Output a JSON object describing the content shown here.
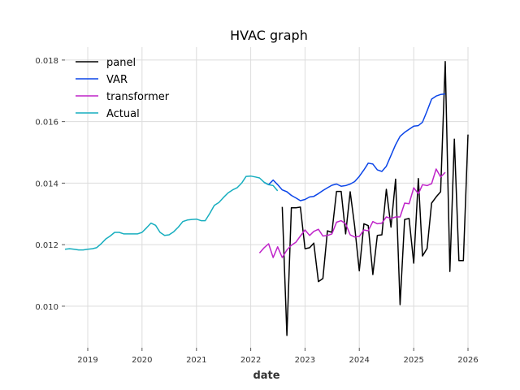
{
  "chart_data": {
    "type": "line",
    "title": "HVAC graph",
    "xlabel": "date",
    "ylabel": "",
    "x_ticks": [
      "2019",
      "2020",
      "2021",
      "2022",
      "2023",
      "2024",
      "2025",
      "2026"
    ],
    "y_ticks": [
      "0.010",
      "0.012",
      "0.014",
      "0.016",
      "0.018"
    ],
    "xlim": [
      "2018-08-01",
      "2026-01-01"
    ],
    "ylim": [
      0.00865,
      0.01842
    ],
    "grid": true,
    "legend_position": "top-left",
    "series": [
      {
        "name": "panel",
        "color": "#000000",
        "points": [
          [
            "2022-08-01",
            0.01323
          ],
          [
            "2022-09-01",
            0.00905
          ],
          [
            "2022-10-01",
            0.0132
          ],
          [
            "2022-11-01",
            0.0132
          ],
          [
            "2022-12-01",
            0.01322
          ],
          [
            "2023-01-01",
            0.01187
          ],
          [
            "2023-02-01",
            0.0119
          ],
          [
            "2023-03-01",
            0.01205
          ],
          [
            "2023-04-01",
            0.0108
          ],
          [
            "2023-05-01",
            0.0109
          ],
          [
            "2023-06-01",
            0.01245
          ],
          [
            "2023-07-01",
            0.0124
          ],
          [
            "2023-08-01",
            0.01373
          ],
          [
            "2023-09-01",
            0.01373
          ],
          [
            "2023-10-01",
            0.01235
          ],
          [
            "2023-11-01",
            0.01372
          ],
          [
            "2023-12-01",
            0.0126
          ],
          [
            "2024-01-01",
            0.01115
          ],
          [
            "2024-02-01",
            0.01268
          ],
          [
            "2024-03-01",
            0.01262
          ],
          [
            "2024-04-01",
            0.01103
          ],
          [
            "2024-05-01",
            0.0123
          ],
          [
            "2024-06-01",
            0.01232
          ],
          [
            "2024-07-01",
            0.0138
          ],
          [
            "2024-08-01",
            0.01257
          ],
          [
            "2024-09-01",
            0.01413
          ],
          [
            "2024-10-01",
            0.01005
          ],
          [
            "2024-11-01",
            0.01282
          ],
          [
            "2024-12-01",
            0.01285
          ],
          [
            "2025-01-01",
            0.0114
          ],
          [
            "2025-02-01",
            0.01415
          ],
          [
            "2025-03-01",
            0.01163
          ],
          [
            "2025-04-01",
            0.01188
          ],
          [
            "2025-05-01",
            0.01335
          ],
          [
            "2025-06-01",
            0.01355
          ],
          [
            "2025-07-01",
            0.01372
          ],
          [
            "2025-08-01",
            0.01795
          ],
          [
            "2025-09-01",
            0.01113
          ],
          [
            "2025-10-01",
            0.01543
          ],
          [
            "2025-11-01",
            0.01148
          ],
          [
            "2025-12-01",
            0.01148
          ],
          [
            "2026-01-01",
            0.01558
          ]
        ]
      },
      {
        "name": "VAR",
        "color": "#0b45e8",
        "points": [
          [
            "2022-04-01",
            0.01402
          ],
          [
            "2022-05-01",
            0.01395
          ],
          [
            "2022-06-01",
            0.0141
          ],
          [
            "2022-07-01",
            0.01395
          ],
          [
            "2022-08-01",
            0.01378
          ],
          [
            "2022-09-01",
            0.01372
          ],
          [
            "2022-10-01",
            0.0136
          ],
          [
            "2022-11-01",
            0.01352
          ],
          [
            "2022-12-01",
            0.01343
          ],
          [
            "2023-01-01",
            0.01347
          ],
          [
            "2023-02-01",
            0.01355
          ],
          [
            "2023-03-01",
            0.01357
          ],
          [
            "2023-04-01",
            0.01366
          ],
          [
            "2023-05-01",
            0.01376
          ],
          [
            "2023-06-01",
            0.01385
          ],
          [
            "2023-07-01",
            0.01393
          ],
          [
            "2023-08-01",
            0.01397
          ],
          [
            "2023-09-01",
            0.0139
          ],
          [
            "2023-10-01",
            0.01392
          ],
          [
            "2023-11-01",
            0.01397
          ],
          [
            "2023-12-01",
            0.01405
          ],
          [
            "2024-01-01",
            0.01422
          ],
          [
            "2024-02-01",
            0.01443
          ],
          [
            "2024-03-01",
            0.01465
          ],
          [
            "2024-04-01",
            0.01462
          ],
          [
            "2024-05-01",
            0.01443
          ],
          [
            "2024-06-01",
            0.01438
          ],
          [
            "2024-07-01",
            0.01455
          ],
          [
            "2024-08-01",
            0.0149
          ],
          [
            "2024-09-01",
            0.01525
          ],
          [
            "2024-10-01",
            0.01552
          ],
          [
            "2024-11-01",
            0.01565
          ],
          [
            "2024-12-01",
            0.01575
          ],
          [
            "2025-01-01",
            0.01585
          ],
          [
            "2025-02-01",
            0.01587
          ],
          [
            "2025-03-01",
            0.01598
          ],
          [
            "2025-04-01",
            0.01635
          ],
          [
            "2025-05-01",
            0.01673
          ],
          [
            "2025-06-01",
            0.01683
          ],
          [
            "2025-07-01",
            0.01688
          ],
          [
            "2025-08-01",
            0.0169
          ]
        ]
      },
      {
        "name": "transformer",
        "color": "#bf23c9",
        "points": [
          [
            "2022-03-01",
            0.01173
          ],
          [
            "2022-04-01",
            0.0119
          ],
          [
            "2022-05-01",
            0.01203
          ],
          [
            "2022-06-01",
            0.01158
          ],
          [
            "2022-07-01",
            0.01193
          ],
          [
            "2022-08-01",
            0.01158
          ],
          [
            "2022-09-01",
            0.01183
          ],
          [
            "2022-10-01",
            0.01198
          ],
          [
            "2022-11-01",
            0.01208
          ],
          [
            "2022-12-01",
            0.01228
          ],
          [
            "2023-01-01",
            0.01248
          ],
          [
            "2023-02-01",
            0.0123
          ],
          [
            "2023-03-01",
            0.01243
          ],
          [
            "2023-04-01",
            0.0125
          ],
          [
            "2023-05-01",
            0.01228
          ],
          [
            "2023-06-01",
            0.0123
          ],
          [
            "2023-07-01",
            0.01235
          ],
          [
            "2023-08-01",
            0.01273
          ],
          [
            "2023-09-01",
            0.01278
          ],
          [
            "2023-10-01",
            0.01268
          ],
          [
            "2023-11-01",
            0.01232
          ],
          [
            "2023-12-01",
            0.01225
          ],
          [
            "2024-01-01",
            0.01227
          ],
          [
            "2024-02-01",
            0.01248
          ],
          [
            "2024-03-01",
            0.01245
          ],
          [
            "2024-04-01",
            0.01275
          ],
          [
            "2024-05-01",
            0.01268
          ],
          [
            "2024-06-01",
            0.0127
          ],
          [
            "2024-07-01",
            0.0129
          ],
          [
            "2024-08-01",
            0.01285
          ],
          [
            "2024-09-01",
            0.0129
          ],
          [
            "2024-10-01",
            0.0129
          ],
          [
            "2024-11-01",
            0.01335
          ],
          [
            "2024-12-01",
            0.01333
          ],
          [
            "2025-01-01",
            0.01385
          ],
          [
            "2025-02-01",
            0.01365
          ],
          [
            "2025-03-01",
            0.01395
          ],
          [
            "2025-04-01",
            0.01392
          ],
          [
            "2025-05-01",
            0.01398
          ],
          [
            "2025-06-01",
            0.01446
          ],
          [
            "2025-07-01",
            0.0142
          ],
          [
            "2025-08-01",
            0.01435
          ]
        ]
      },
      {
        "name": "Actual",
        "color": "#17aebf",
        "points": [
          [
            "2018-08-01",
            0.01185
          ],
          [
            "2018-09-01",
            0.01187
          ],
          [
            "2018-10-01",
            0.01185
          ],
          [
            "2018-11-01",
            0.01183
          ],
          [
            "2018-12-01",
            0.01183
          ],
          [
            "2019-01-01",
            0.01185
          ],
          [
            "2019-02-01",
            0.01187
          ],
          [
            "2019-03-01",
            0.0119
          ],
          [
            "2019-04-01",
            0.01203
          ],
          [
            "2019-05-01",
            0.01218
          ],
          [
            "2019-06-01",
            0.01228
          ],
          [
            "2019-07-01",
            0.0124
          ],
          [
            "2019-08-01",
            0.0124
          ],
          [
            "2019-09-01",
            0.01235
          ],
          [
            "2019-10-01",
            0.01235
          ],
          [
            "2019-11-01",
            0.01235
          ],
          [
            "2019-12-01",
            0.01235
          ],
          [
            "2020-01-01",
            0.0124
          ],
          [
            "2020-02-01",
            0.01255
          ],
          [
            "2020-03-01",
            0.0127
          ],
          [
            "2020-04-01",
            0.01263
          ],
          [
            "2020-05-01",
            0.0124
          ],
          [
            "2020-06-01",
            0.0123
          ],
          [
            "2020-07-01",
            0.01232
          ],
          [
            "2020-08-01",
            0.01242
          ],
          [
            "2020-09-01",
            0.01257
          ],
          [
            "2020-10-01",
            0.01275
          ],
          [
            "2020-11-01",
            0.0128
          ],
          [
            "2020-12-01",
            0.01282
          ],
          [
            "2021-01-01",
            0.01283
          ],
          [
            "2021-02-01",
            0.01278
          ],
          [
            "2021-03-01",
            0.01278
          ],
          [
            "2021-04-01",
            0.01302
          ],
          [
            "2021-05-01",
            0.01328
          ],
          [
            "2021-06-01",
            0.01337
          ],
          [
            "2021-07-01",
            0.01353
          ],
          [
            "2021-08-01",
            0.01368
          ],
          [
            "2021-09-01",
            0.01378
          ],
          [
            "2021-10-01",
            0.01385
          ],
          [
            "2021-11-01",
            0.014
          ],
          [
            "2021-12-01",
            0.01422
          ],
          [
            "2022-01-01",
            0.01423
          ],
          [
            "2022-02-01",
            0.0142
          ],
          [
            "2022-03-01",
            0.01417
          ],
          [
            "2022-04-01",
            0.01403
          ],
          [
            "2022-05-01",
            0.01395
          ],
          [
            "2022-06-01",
            0.01392
          ],
          [
            "2022-07-01",
            0.01375
          ]
        ]
      }
    ]
  }
}
